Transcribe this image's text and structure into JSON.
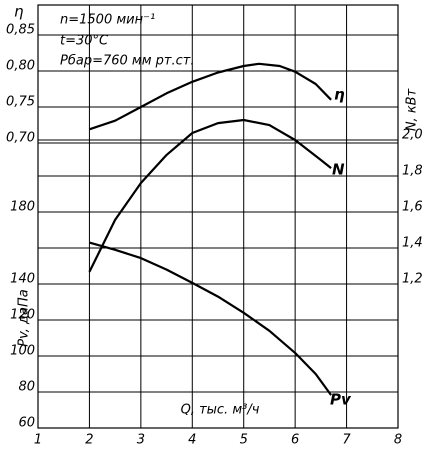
{
  "chart_data": {
    "type": "line",
    "annotations": [
      "n=1500 мин⁻¹",
      "t=30°C",
      "Pбар=760 мм рт.ст."
    ],
    "x_label": "Q, тыс. м³/ч",
    "eta_label": "η",
    "n_label": "N, кВт",
    "pv_label": "Pv, даПа",
    "xlim": [
      1,
      8
    ],
    "xticks": [
      1,
      2,
      3,
      4,
      5,
      6,
      7,
      8
    ],
    "eta_lim": [
      0.3042,
      0.8917
    ],
    "eta_ticks": [
      {
        "value": 0.7,
        "label": "0,70"
      },
      {
        "value": 0.75,
        "label": "0,75"
      },
      {
        "value": 0.8,
        "label": "0,80"
      },
      {
        "value": 0.85,
        "label": "0,85"
      }
    ],
    "pv_lim": [
      60,
      295
    ],
    "pv_ticks": [
      60,
      80,
      100,
      120,
      140,
      180
    ],
    "n_lim": [
      0.4,
      2.75
    ],
    "n_ticks": [
      {
        "value": 1.2,
        "label": "1,2"
      },
      {
        "value": 1.4,
        "label": "1,4"
      },
      {
        "value": 1.6,
        "label": "1,6"
      },
      {
        "value": 1.8,
        "label": "1,8"
      },
      {
        "value": 2.0,
        "label": "2,0"
      }
    ],
    "grid": true,
    "series": [
      {
        "name": "η",
        "axis": "eta",
        "color": "#000000",
        "x": [
          2,
          2.5,
          3,
          3.5,
          4,
          4.5,
          5,
          5.3,
          5.7,
          6,
          6.4,
          6.7
        ],
        "values": [
          0.719,
          0.731,
          0.75,
          0.769,
          0.785,
          0.798,
          0.807,
          0.81,
          0.807,
          0.799,
          0.782,
          0.76
        ]
      },
      {
        "name": "N",
        "axis": "n",
        "color": "#000000",
        "x": [
          2,
          2.5,
          3,
          3.5,
          4,
          4.5,
          5,
          5.5,
          6,
          6.5,
          6.7
        ],
        "values": [
          1.267,
          1.556,
          1.761,
          1.917,
          2.039,
          2.094,
          2.111,
          2.083,
          2.0,
          1.889,
          1.844
        ]
      },
      {
        "name": "Pv",
        "axis": "pv",
        "color": "#000000",
        "x": [
          2,
          2.5,
          3,
          3.5,
          4,
          4.5,
          5,
          5.5,
          6,
          6.4,
          6.7
        ],
        "values": [
          163,
          159,
          154.4,
          148,
          140.6,
          133,
          124,
          114,
          101.7,
          90,
          78.3
        ]
      }
    ]
  }
}
